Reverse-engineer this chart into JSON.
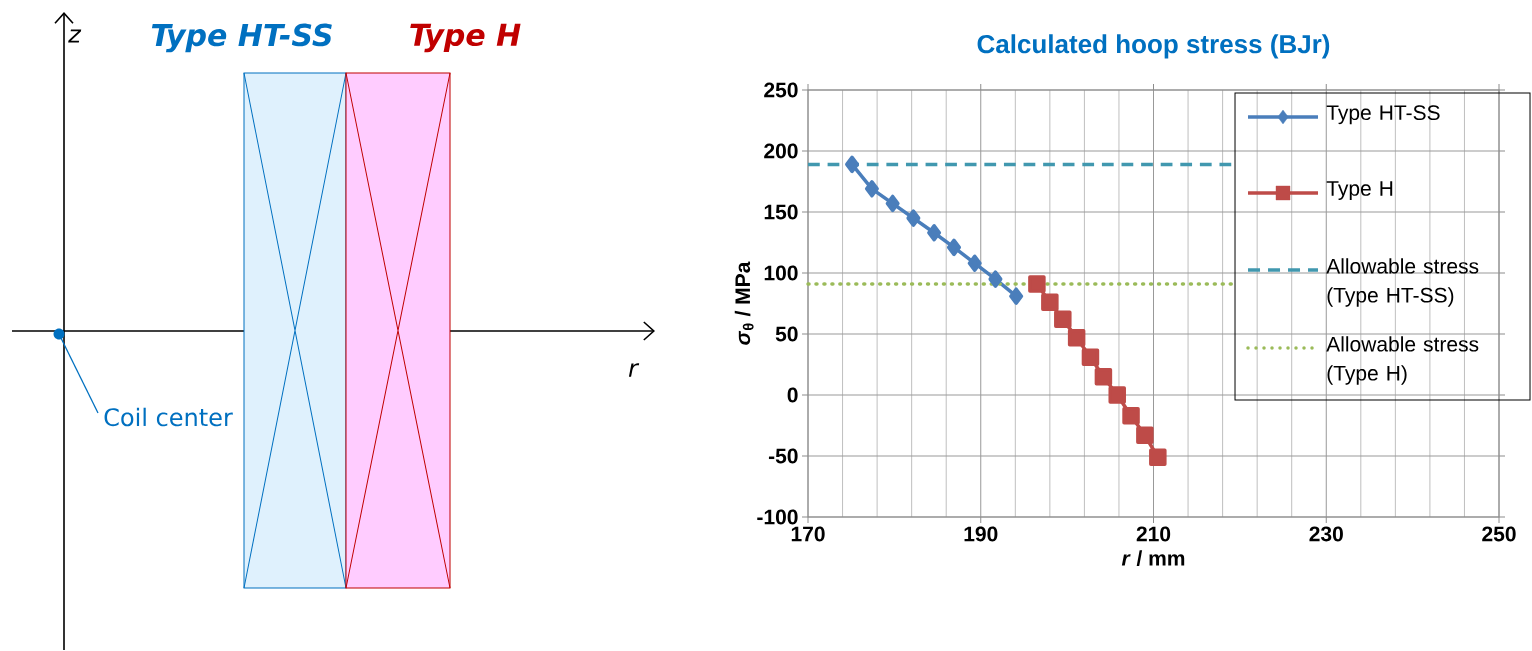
{
  "chart_data": [
    {
      "type": "other",
      "xlabel": "r",
      "ylabel": "z",
      "annotations": [
        "Type HT-SS",
        "Type H",
        "Coil center"
      ]
    },
    {
      "type": "line",
      "title": "Calculated hoop stress (BJr)",
      "xlabel": "*r* / mm",
      "ylabel": "*σ*$_{θ}$ / MPa",
      "xlim": [
        170,
        250
      ],
      "ylim": [
        -100,
        250
      ],
      "xticks": [
        170,
        {
          "value": 174,
          "label": null
        },
        {
          "value": 178,
          "label": null
        },
        {
          "value": 182,
          "label": null
        },
        {
          "value": 186,
          "label": null
        },
        190,
        {
          "value": 194,
          "label": null
        },
        {
          "value": 198,
          "label": null
        },
        {
          "value": 202,
          "label": null
        },
        {
          "value": 206,
          "label": null
        },
        210,
        {
          "value": 214,
          "label": null
        },
        {
          "value": 218,
          "label": null
        },
        {
          "value": 222,
          "label": null
        },
        {
          "value": 226,
          "label": null
        },
        230,
        {
          "value": 234,
          "label": null
        },
        {
          "value": 238,
          "label": null
        },
        {
          "value": 242,
          "label": null
        },
        {
          "value": 246,
          "label": null
        },
        250
      ],
      "yticks": [
        -100,
        -50,
        0,
        50,
        100,
        150,
        200,
        250
      ],
      "grid": true,
      "legend": "top right",
      "series": [
        {
          "name": "Type HT-SS",
          "color": "#4a7ebb",
          "marker": "diamond",
          "line_style": "solid",
          "x": [
            175.1,
            177.4,
            179.8,
            182.2,
            184.6,
            186.9,
            189.3,
            191.7,
            194.1
          ],
          "values": [
            189,
            169,
            157,
            145,
            133,
            121,
            108,
            95,
            81
          ]
        },
        {
          "name": "Type H",
          "color": "#be4b48",
          "marker": "square",
          "line_style": "solid",
          "x": [
            196.5,
            198.0,
            199.5,
            201.1,
            202.7,
            204.2,
            205.8,
            207.4,
            209.0,
            210.5
          ],
          "values": [
            91,
            76,
            62,
            47,
            31,
            15,
            0,
            -17,
            -33,
            -51
          ]
        },
        {
          "name": "Allowable stress (Type HT-SS)",
          "color": "#4198af",
          "marker": "none",
          "line_style": "dashed",
          "x": [
            170,
            219
          ],
          "values": [
            189,
            189
          ]
        },
        {
          "name": "Allowable stress (Type H)",
          "color": "#9bbb59",
          "marker": "none",
          "line_style": "dotted",
          "x": [
            170,
            219
          ],
          "values": [
            91,
            91
          ]
        }
      ]
    }
  ]
}
